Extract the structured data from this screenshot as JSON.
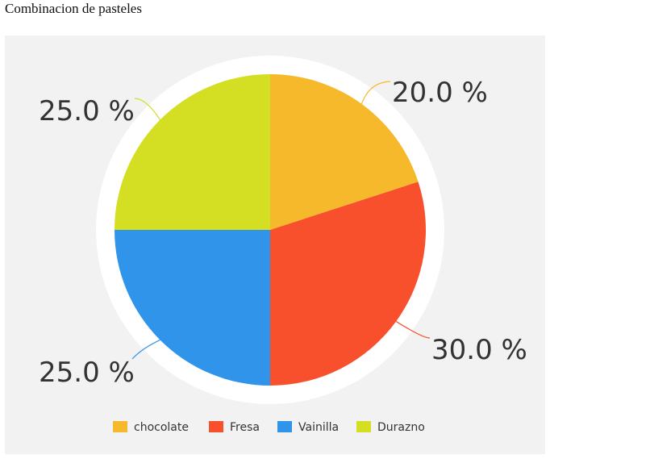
{
  "page": {
    "title": "Combinacion de pasteles"
  },
  "chart_data": {
    "type": "pie",
    "title": "",
    "slices": [
      {
        "label": "chocolate",
        "value": 20.0,
        "display": "20.0 %",
        "color": "#f7b92c"
      },
      {
        "label": "Fresa",
        "value": 30.0,
        "display": "30.0 %",
        "color": "#f8502c"
      },
      {
        "label": "Vainilla",
        "value": 25.0,
        "display": "25.0 %",
        "color": "#3095ea"
      },
      {
        "label": "Durazno",
        "value": 25.0,
        "display": "25.0 %",
        "color": "#d4de22"
      }
    ],
    "start_angle_deg": 0,
    "direction": "clockwise",
    "legend_position": "bottom",
    "background_color": "#f2f2f2",
    "outer_ring_color": "#ffffff"
  }
}
